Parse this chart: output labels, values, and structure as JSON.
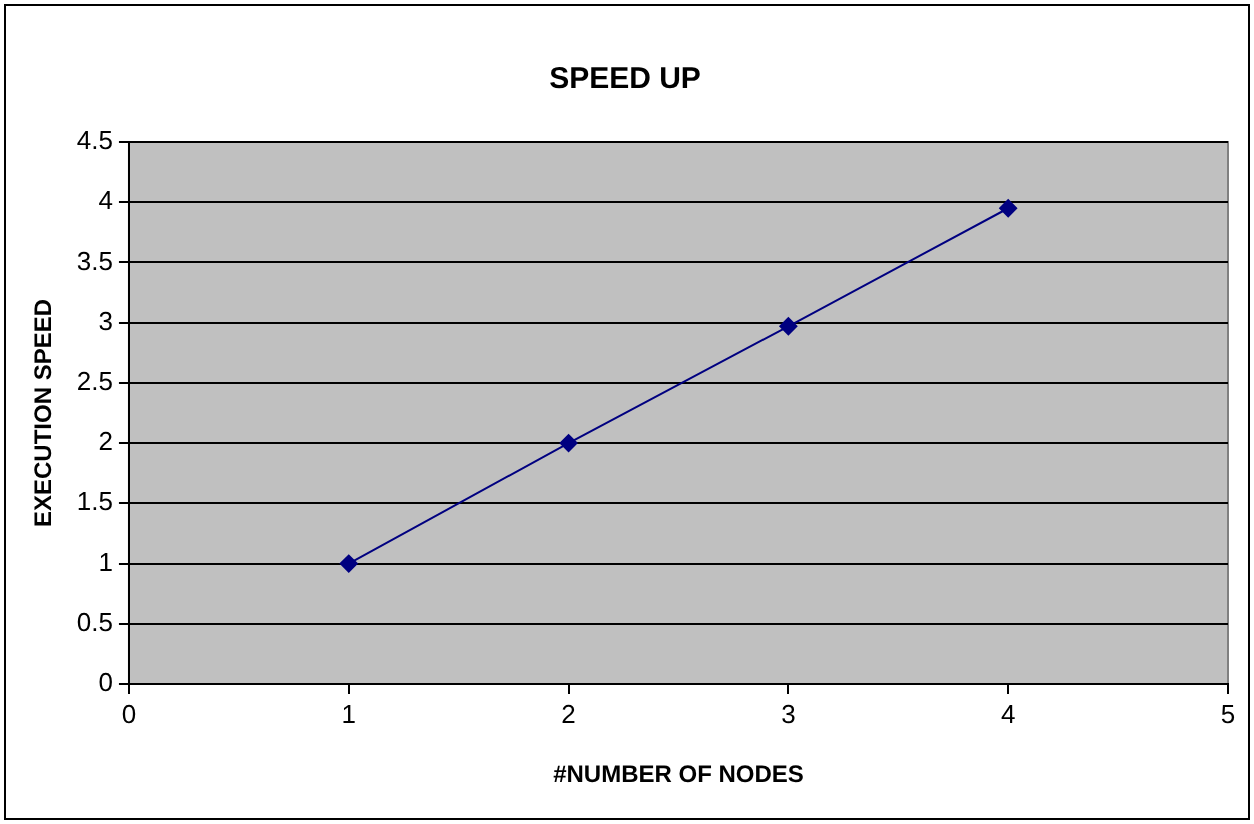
{
  "chart_data": {
    "type": "line",
    "title": "SPEED UP",
    "xlabel": "#NUMBER OF NODES",
    "ylabel": "EXECUTION SPEED",
    "x": [
      1,
      2,
      3,
      4
    ],
    "series": [
      {
        "color": "#000080",
        "values": [
          1,
          2,
          2.97,
          3.95
        ]
      }
    ],
    "xlim": [
      0,
      5
    ],
    "xticks": [
      0,
      1,
      2,
      3,
      4,
      5
    ],
    "ylim": [
      0,
      4.5
    ],
    "yticks": [
      0,
      0.5,
      1,
      1.5,
      2,
      2.5,
      3,
      3.5,
      4,
      4.5
    ],
    "grid": "y",
    "legend": false,
    "marker": "diamond",
    "line_style": "solid"
  }
}
